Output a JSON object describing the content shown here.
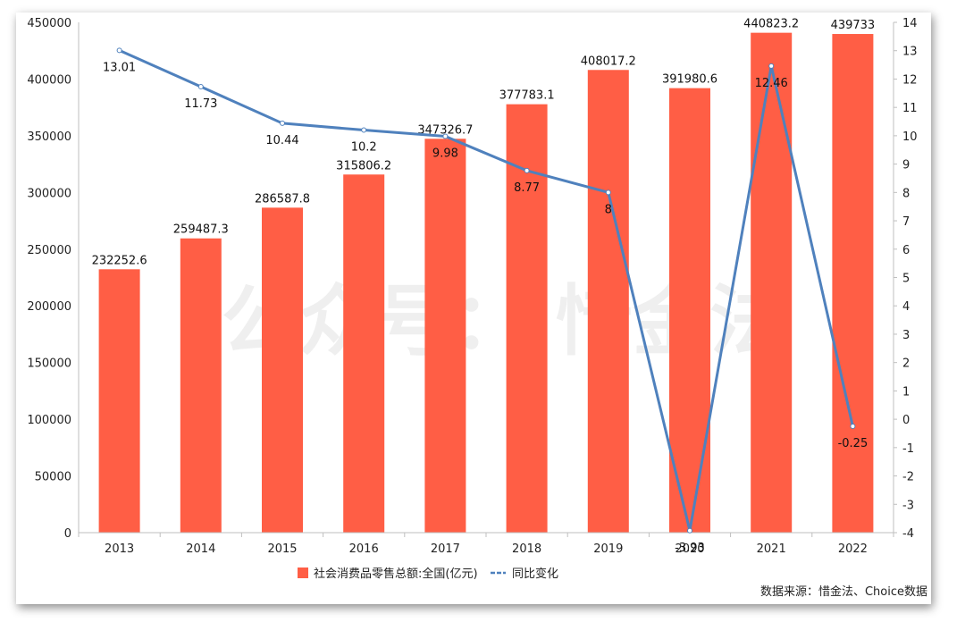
{
  "watermark": "公众号：  惜金法",
  "source": "数据来源：惜金法、Choice数据",
  "colors": {
    "bar": "#ff5e45",
    "line": "#4f81bd",
    "axis": "#bfbfbf"
  },
  "chart_data": {
    "type": "bar",
    "categories": [
      "2013",
      "2014",
      "2015",
      "2016",
      "2017",
      "2018",
      "2019",
      "2020",
      "2021",
      "2022"
    ],
    "series": [
      {
        "name": "社会消费品零售总额:全国(亿元)",
        "kind": "bar",
        "axis": "left",
        "values": [
          232252.6,
          259487.3,
          286587.8,
          315806.2,
          347326.7,
          377783.1,
          408017.2,
          391980.6,
          440823.2,
          439733
        ]
      },
      {
        "name": "同比变化",
        "kind": "line",
        "axis": "right",
        "values": [
          13.01,
          11.73,
          10.44,
          10.2,
          9.98,
          8.77,
          8,
          -3.93,
          12.46,
          -0.25
        ]
      }
    ],
    "left_axis": {
      "min": 0,
      "max": 450000,
      "ticks": [
        0,
        50000,
        100000,
        150000,
        200000,
        250000,
        300000,
        350000,
        400000,
        450000
      ]
    },
    "right_axis": {
      "min": -4,
      "max": 14,
      "ticks": [
        -4,
        -3,
        -2,
        -1,
        0,
        1,
        2,
        3,
        4,
        5,
        6,
        7,
        8,
        9,
        10,
        11,
        12,
        13,
        14
      ]
    },
    "legend_position": "bottom",
    "grid": false
  }
}
